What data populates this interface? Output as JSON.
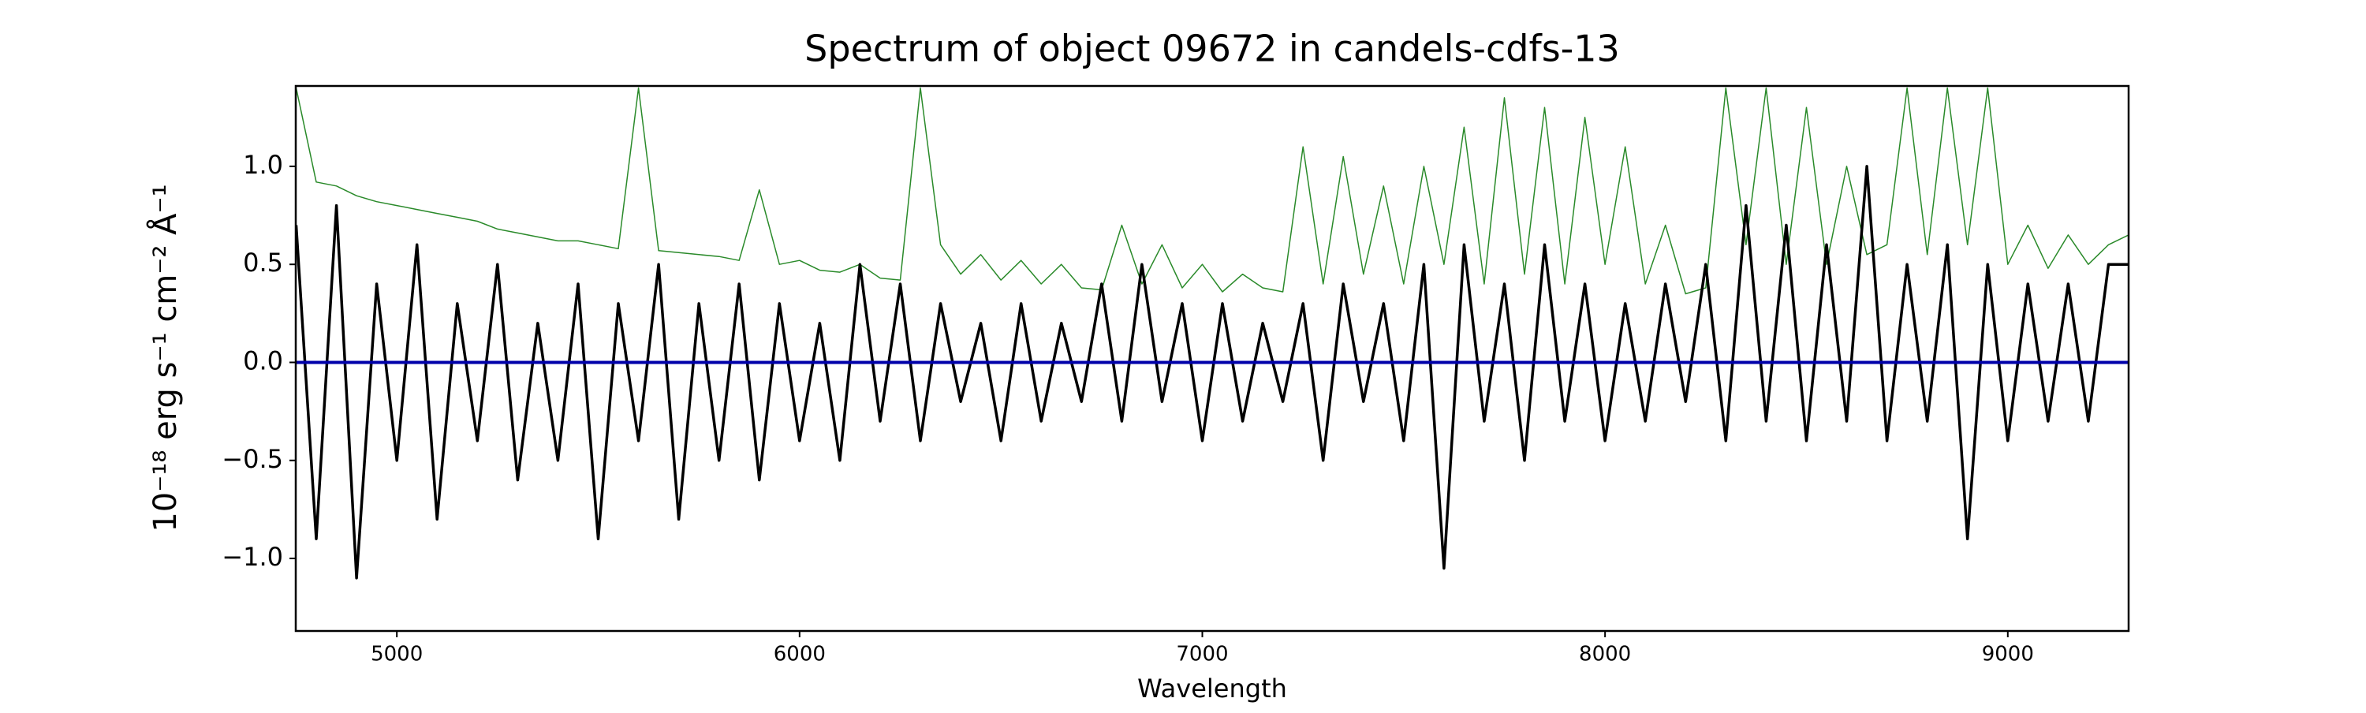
{
  "chart_data": {
    "type": "line",
    "title": "Spectrum of object 09672 in candels-cdfs-13",
    "xlabel": "Wavelength",
    "ylabel": "10⁻¹⁸ erg s⁻¹ cm⁻² Å⁻¹",
    "xlim": [
      4749,
      9300
    ],
    "ylim": [
      -1.37,
      1.41
    ],
    "xticks": [
      5000,
      6000,
      7000,
      8000,
      9000
    ],
    "yticks": [
      {
        "value": -1.0,
        "label": "−1.0"
      },
      {
        "value": -0.5,
        "label": "−0.5"
      },
      {
        "value": 0.0,
        "label": "0.0"
      },
      0.5,
      {
        "value": 1.0,
        "label": "1.0"
      }
    ],
    "x": [
      4750,
      4800,
      4850,
      4900,
      4950,
      5000,
      5050,
      5100,
      5150,
      5200,
      5250,
      5300,
      5350,
      5400,
      5450,
      5500,
      5550,
      5600,
      5650,
      5700,
      5750,
      5800,
      5850,
      5900,
      5950,
      6000,
      6050,
      6100,
      6150,
      6200,
      6250,
      6300,
      6350,
      6400,
      6450,
      6500,
      6550,
      6600,
      6650,
      6700,
      6750,
      6800,
      6850,
      6900,
      6950,
      7000,
      7050,
      7100,
      7150,
      7200,
      7250,
      7300,
      7350,
      7400,
      7450,
      7500,
      7550,
      7600,
      7650,
      7700,
      7750,
      7800,
      7850,
      7900,
      7950,
      8000,
      8050,
      8100,
      8150,
      8200,
      8250,
      8300,
      8350,
      8400,
      8450,
      8500,
      8550,
      8600,
      8650,
      8700,
      8750,
      8800,
      8850,
      8900,
      8950,
      9000,
      9050,
      9100,
      9150,
      9200,
      9250,
      9300
    ],
    "series": [
      {
        "color": "#2a8a2a",
        "values": [
          1.4,
          0.92,
          0.9,
          0.85,
          0.82,
          0.8,
          0.78,
          0.76,
          0.74,
          0.72,
          0.68,
          0.66,
          0.64,
          0.62,
          0.62,
          0.6,
          0.58,
          1.4,
          0.57,
          0.56,
          0.55,
          0.54,
          0.52,
          0.88,
          0.5,
          0.52,
          0.47,
          0.46,
          0.5,
          0.43,
          0.42,
          1.4,
          0.6,
          0.45,
          0.55,
          0.42,
          0.52,
          0.4,
          0.5,
          0.38,
          0.37,
          0.7,
          0.4,
          0.6,
          0.38,
          0.5,
          0.36,
          0.45,
          0.38,
          0.36,
          1.1,
          0.4,
          1.05,
          0.45,
          0.9,
          0.4,
          1.0,
          0.5,
          1.2,
          0.4,
          1.35,
          0.45,
          1.3,
          0.4,
          1.25,
          0.5,
          1.1,
          0.4,
          0.7,
          0.35,
          0.38,
          1.4,
          0.6,
          1.4,
          0.5,
          1.3,
          0.5,
          1.0,
          0.55,
          0.6,
          1.4,
          0.55,
          1.4,
          0.6,
          1.4,
          0.5,
          0.7,
          0.48,
          0.65,
          0.5,
          0.6,
          0.65
        ]
      },
      {
        "color": "#000000",
        "values": [
          0.7,
          -0.9,
          0.8,
          -1.1,
          0.4,
          -0.5,
          0.6,
          -0.8,
          0.3,
          -0.4,
          0.5,
          -0.6,
          0.2,
          -0.5,
          0.4,
          -0.9,
          0.3,
          -0.4,
          0.5,
          -0.8,
          0.3,
          -0.5,
          0.4,
          -0.6,
          0.3,
          -0.4,
          0.2,
          -0.5,
          0.5,
          -0.3,
          0.4,
          -0.4,
          0.3,
          -0.2,
          0.2,
          -0.4,
          0.3,
          -0.3,
          0.2,
          -0.2,
          0.4,
          -0.3,
          0.5,
          -0.2,
          0.3,
          -0.4,
          0.3,
          -0.3,
          0.2,
          -0.2,
          0.3,
          -0.5,
          0.4,
          -0.2,
          0.3,
          -0.4,
          0.5,
          -1.05,
          0.6,
          -0.3,
          0.4,
          -0.5,
          0.6,
          -0.3,
          0.4,
          -0.4,
          0.3,
          -0.3,
          0.4,
          -0.2,
          0.5,
          -0.4,
          0.8,
          -0.3,
          0.7,
          -0.4,
          0.6,
          -0.3,
          1.0,
          -0.4,
          0.5,
          -0.3,
          0.6,
          -0.9,
          0.5,
          -0.4,
          0.4,
          -0.3,
          0.4,
          -0.3,
          0.5,
          0.5
        ]
      },
      {
        "color": "#0000aa",
        "x": [
          4749,
          9300
        ],
        "values": [
          0,
          0
        ]
      }
    ]
  }
}
